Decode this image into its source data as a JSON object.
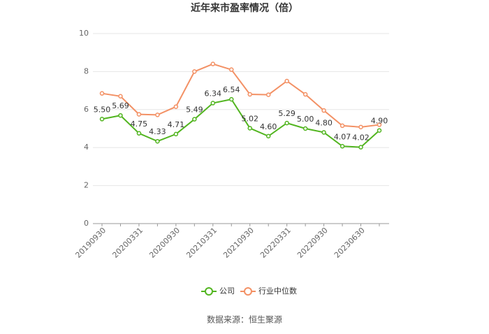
{
  "chart_data": {
    "type": "line",
    "title": "近年来市盈率情况（倍）",
    "source": "数据来源：恒生聚源",
    "categories": [
      "20190930",
      null,
      "20200331",
      null,
      "20200930",
      null,
      "20210331",
      null,
      "20210930",
      null,
      "20220331",
      null,
      "20220930",
      null,
      "20230630",
      null
    ],
    "series": [
      {
        "name": "公司",
        "color": "#52b520",
        "values": [
          5.5,
          5.69,
          4.75,
          4.33,
          4.71,
          5.49,
          6.34,
          6.54,
          5.02,
          4.6,
          5.29,
          5.0,
          4.8,
          4.07,
          4.02,
          4.9
        ],
        "value_labels": [
          "5.50",
          "5.69",
          "4.75",
          "4.33",
          "4.71",
          "5.49",
          "6.34",
          "6.54",
          "5.02",
          "4.60",
          "5.29",
          "5.00",
          "4.80",
          "4.07",
          "4.02",
          "4.90"
        ]
      },
      {
        "name": "行业中位数",
        "color": "#f39165",
        "values": [
          6.85,
          6.7,
          5.75,
          5.72,
          6.15,
          8.0,
          8.4,
          8.1,
          6.8,
          6.78,
          7.5,
          6.8,
          5.95,
          5.15,
          5.08,
          5.2
        ]
      }
    ],
    "ylim": [
      0,
      10
    ],
    "yticks": [
      0,
      2,
      4,
      6,
      8,
      10
    ],
    "grid": true,
    "legend": "bottom"
  }
}
